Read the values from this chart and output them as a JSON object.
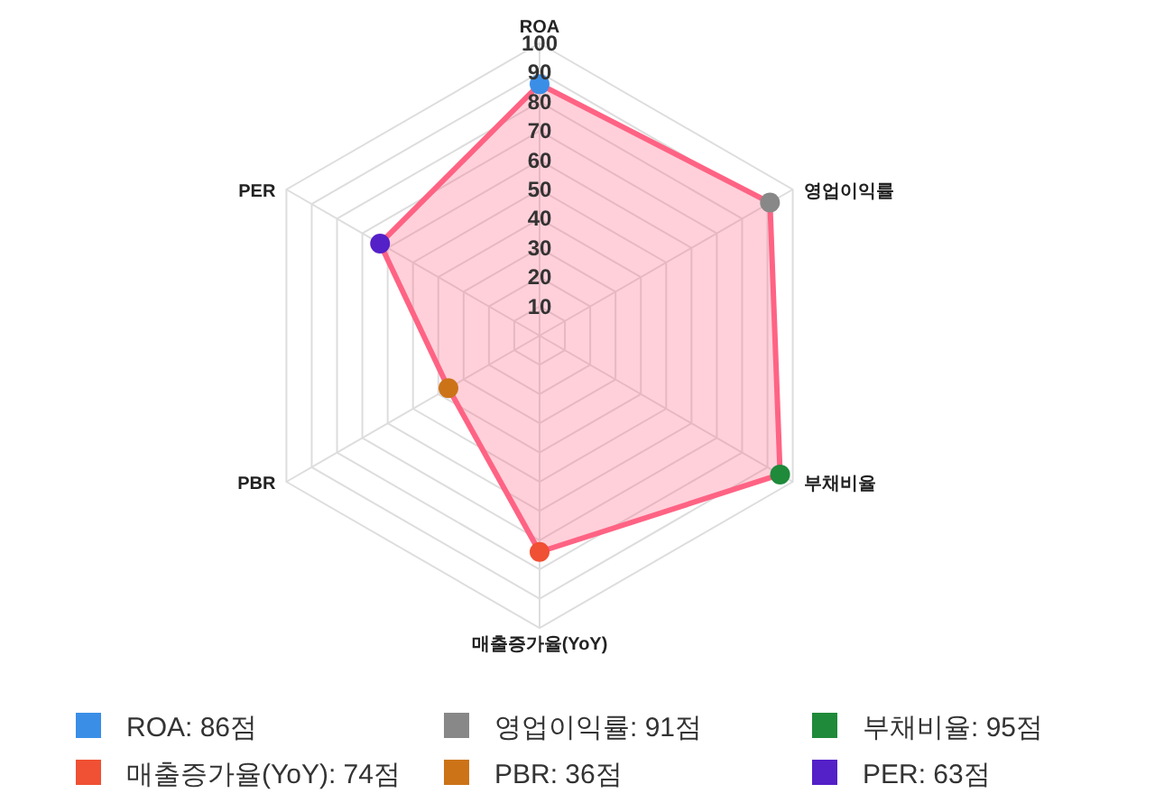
{
  "chart_data": {
    "type": "radar",
    "categories": [
      "ROA",
      "영업이익률",
      "부채비율",
      "매출증가율(YoY)",
      "PBR",
      "PER"
    ],
    "series": [
      {
        "color": "#ff6384",
        "values": [
          86,
          91,
          95,
          74,
          36,
          63
        ],
        "colors": [
          "#3a8ee6",
          "#888888",
          "#1e8a3a",
          "#f05033",
          "#cc7318",
          "#5420c8"
        ]
      }
    ],
    "annotations": [
      "ROA: 86점",
      "영업이익률: 91점",
      "부채비율: 95점",
      "매출증가율(YoY): 74점",
      "PBR: 36점",
      "PER: 63점"
    ],
    "ylim": [
      0,
      100
    ],
    "yticks": [
      10,
      20,
      30,
      40,
      50,
      60,
      70,
      80,
      90,
      100
    ],
    "grid": true,
    "marker": "circle"
  }
}
